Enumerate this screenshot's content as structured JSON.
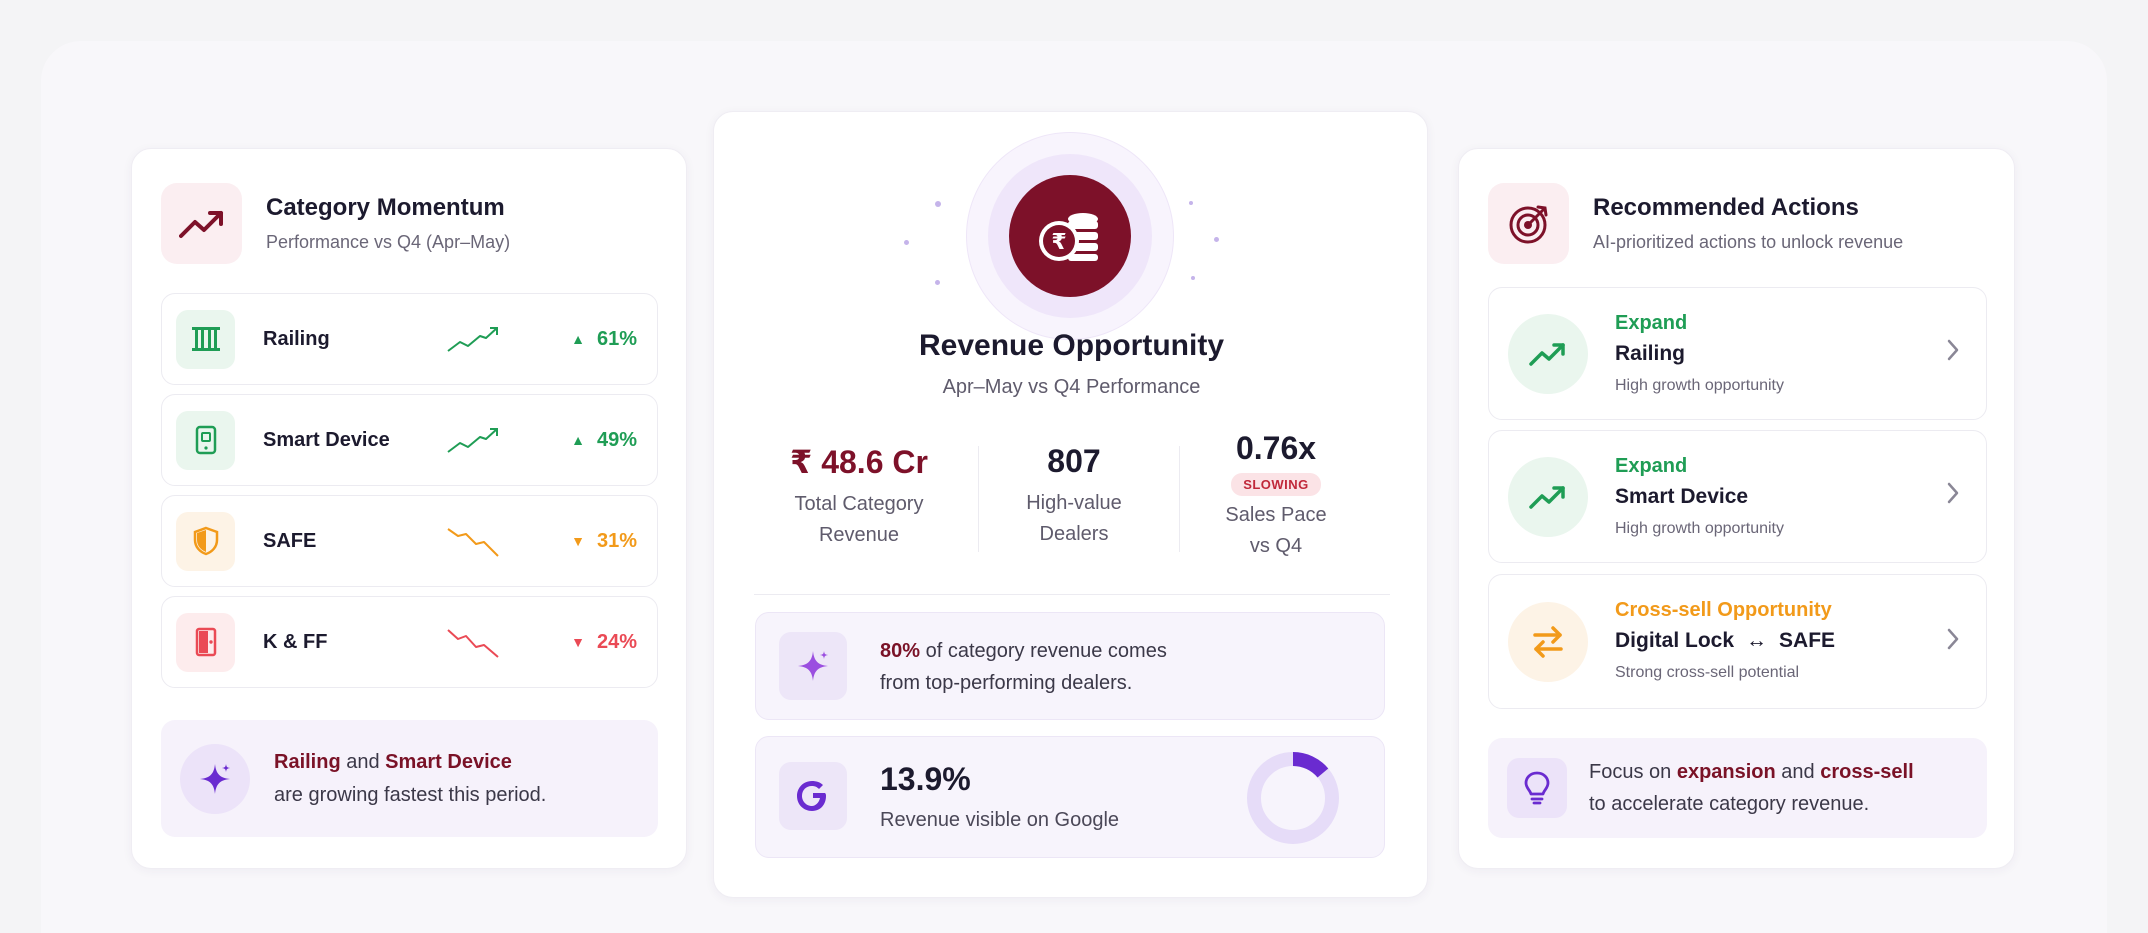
{
  "momentum": {
    "title": "Category Momentum",
    "subtitle": "Performance vs Q4 (Apr–May)",
    "rows": [
      {
        "name": "Railing",
        "change": "61%",
        "direction": "up",
        "icon": "railing-icon"
      },
      {
        "name": "Smart Device",
        "change": "49%",
        "direction": "up",
        "icon": "smart-device-icon"
      },
      {
        "name": "SAFE",
        "change": "31%",
        "direction": "down",
        "icon": "shield-icon"
      },
      {
        "name": "K & FF",
        "change": "24%",
        "direction": "down",
        "icon": "door-icon"
      }
    ],
    "insight": {
      "part1": "Railing",
      "part2": " and ",
      "part3": "Smart Device",
      "line2": "are growing fastest this period."
    }
  },
  "revenue": {
    "title": "Revenue Opportunity",
    "subtitle": "Apr–May vs Q4 Performance",
    "stats": [
      {
        "value": "₹ 48.6 Cr",
        "label1": "Total Category",
        "label2": "Revenue"
      },
      {
        "value": "807",
        "label1": "High-value",
        "label2": "Dealers"
      },
      {
        "value": "0.76x",
        "badge": "SLOWING",
        "label1": "Sales Pace",
        "label2": "vs Q4"
      }
    ],
    "insight": {
      "pct": "80%",
      "text1": " of category revenue comes",
      "text2": "from top-performing dealers."
    },
    "google": {
      "value": "13.9%",
      "label": "Revenue visible on Google",
      "fraction": 0.139
    }
  },
  "actions": {
    "title": "Recommended Actions",
    "subtitle": "AI-prioritized actions to unlock revenue",
    "items": [
      {
        "kind": "Expand",
        "target": "Railing",
        "desc": "High growth opportunity"
      },
      {
        "kind": "Expand",
        "target": "Smart Device",
        "desc": "High growth opportunity"
      },
      {
        "kind": "Cross-sell Opportunity",
        "target_a": "Digital Lock",
        "arrow": "↔",
        "target_b": "SAFE",
        "desc": "Strong cross-sell potential"
      }
    ],
    "tip": {
      "t1": "Focus on ",
      "t2": "expansion",
      "t3": " and ",
      "t4": "cross-sell",
      "line2": "to accelerate category revenue."
    }
  },
  "colors": {
    "brand": "#7d1129",
    "up": "#1f9d55",
    "down_orange": "#f29a1a",
    "down_red": "#ea4a55",
    "accent_purple": "#6a2bd0"
  }
}
